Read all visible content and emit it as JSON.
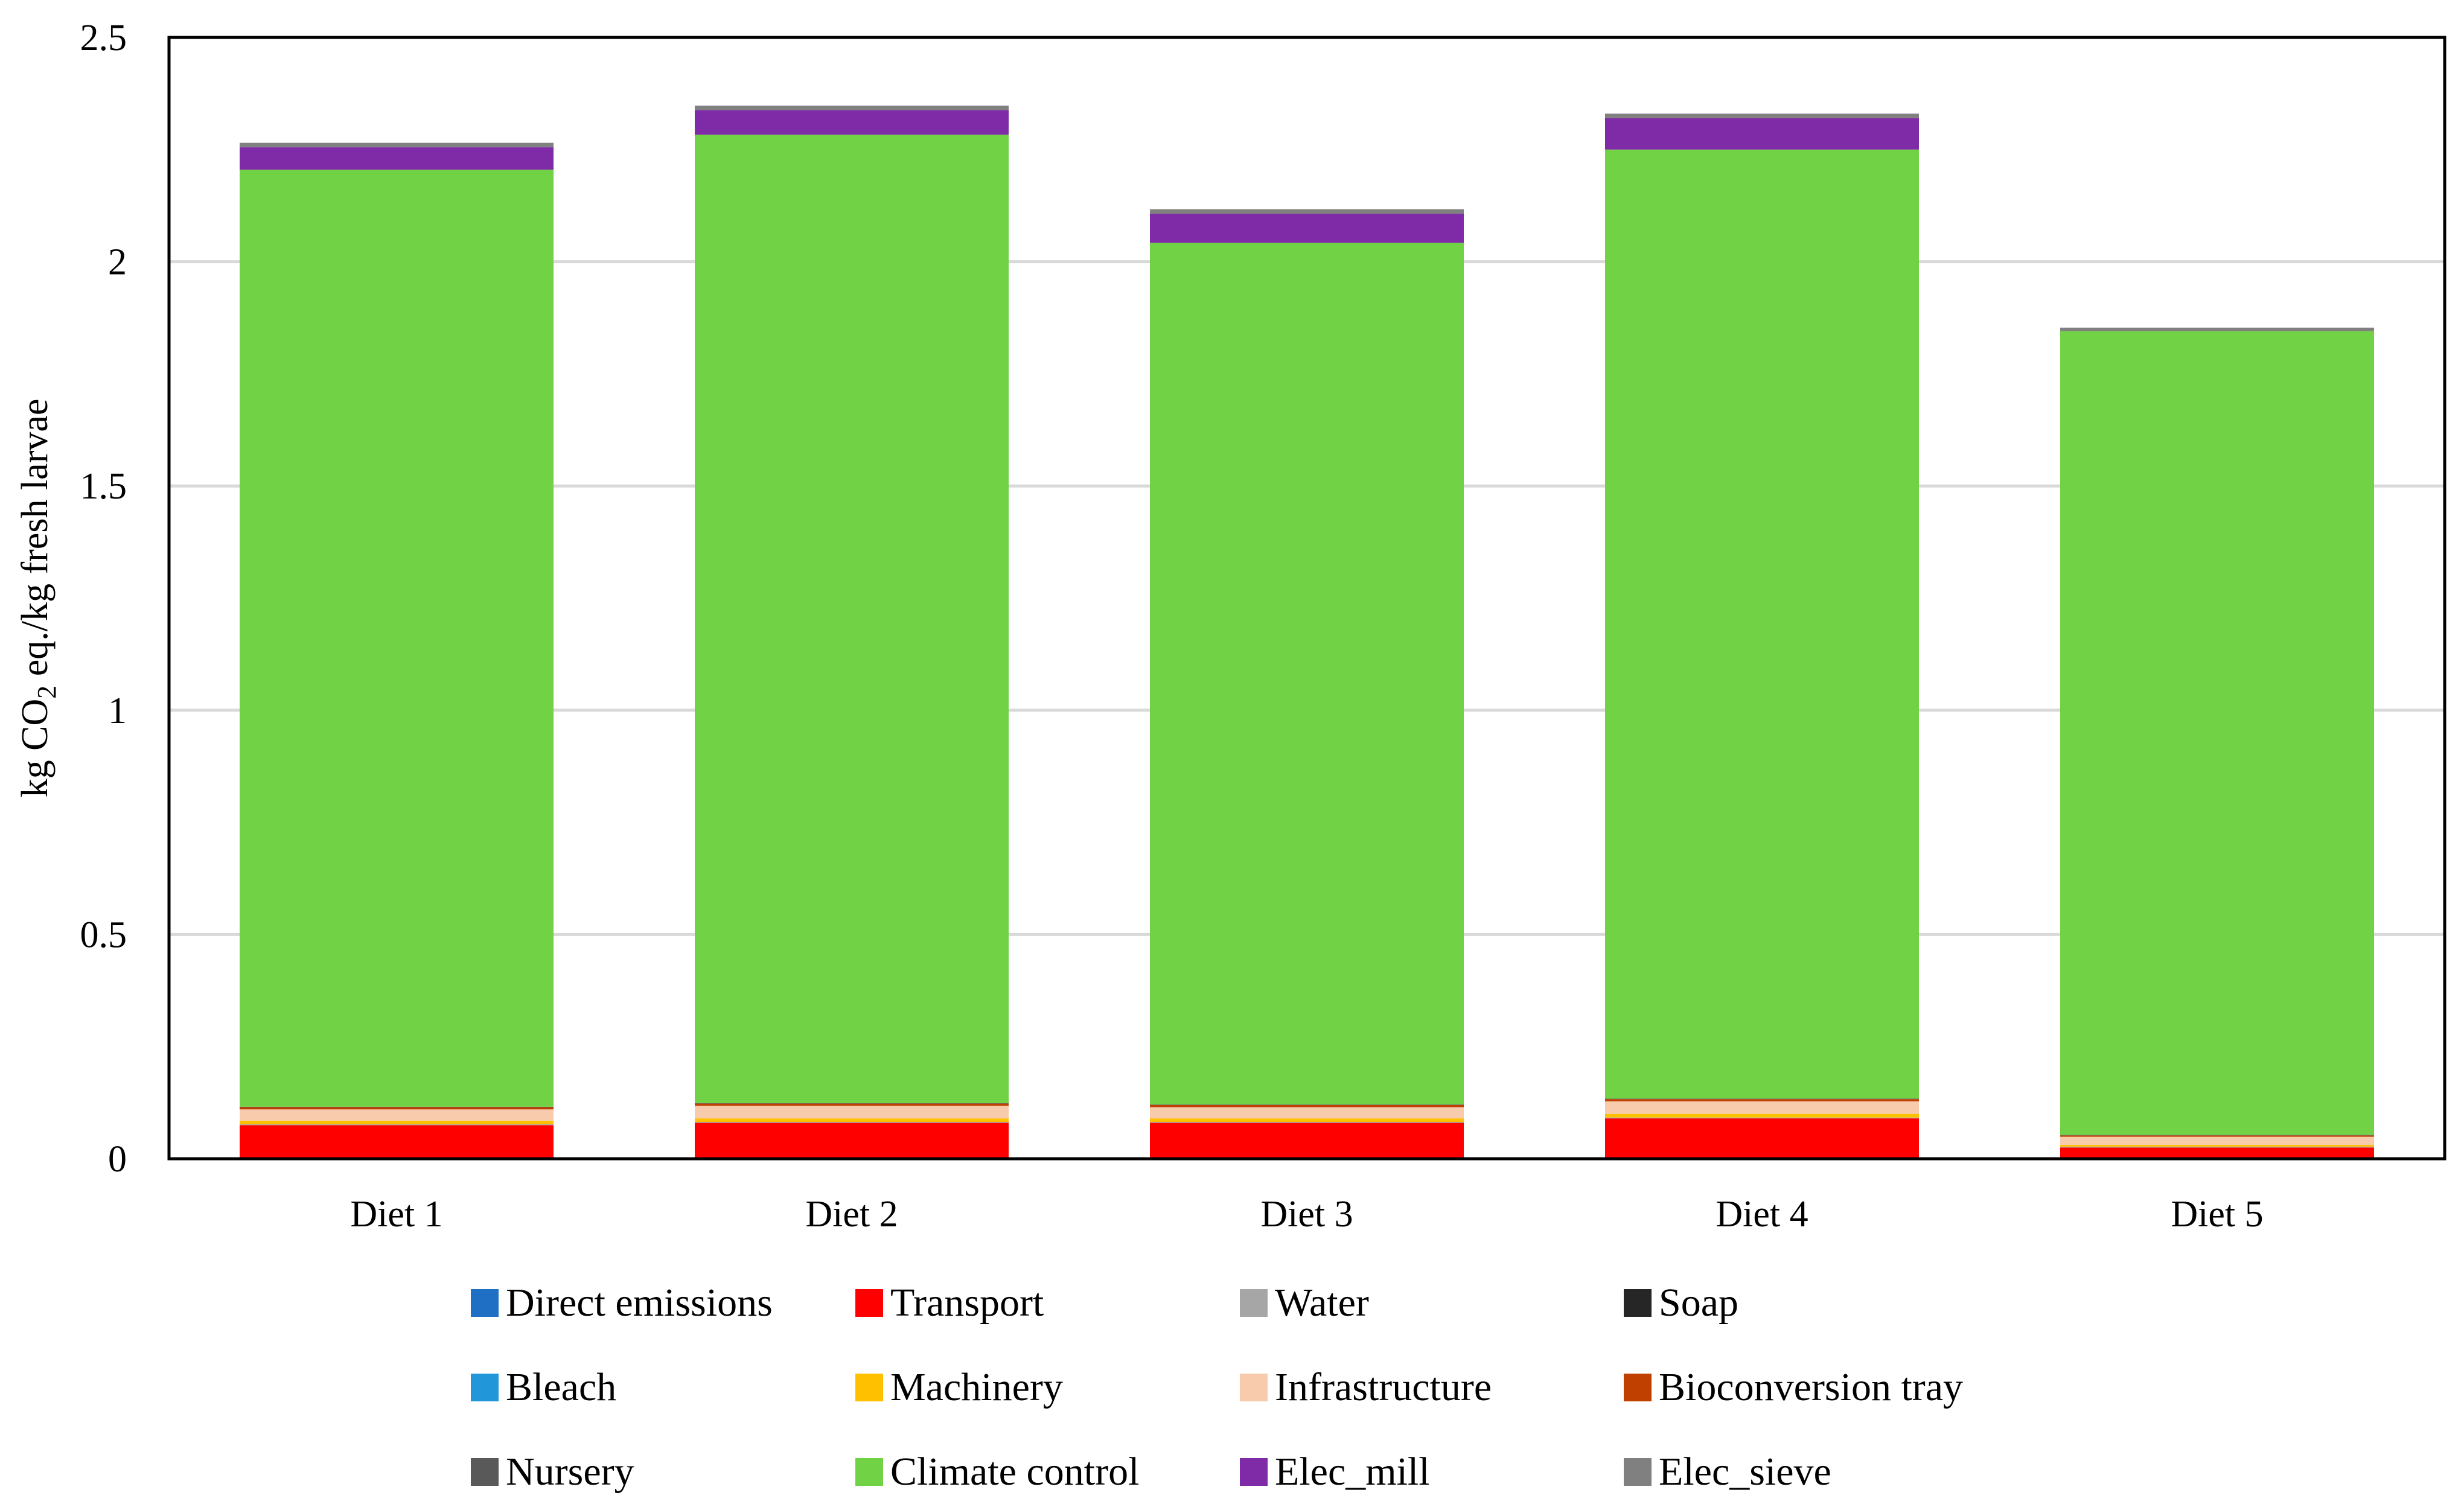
{
  "chart_data": {
    "type": "bar",
    "stacked": true,
    "title": "",
    "xlabel": "",
    "ylabel": {
      "prefix": "kg CO",
      "subscript": "2",
      "suffix": " eq./kg fresh larvae"
    },
    "ylim": [
      0,
      2.5
    ],
    "yticks": [
      0,
      0.5,
      1,
      1.5,
      2,
      2.5
    ],
    "ytick_labels": [
      "0",
      "0.5",
      "1",
      "1.5",
      "2",
      "2.5"
    ],
    "grid": true,
    "legend_position": "bottom",
    "categories": [
      "Diet 1",
      "Diet 2",
      "Diet 3",
      "Diet 4",
      "Diet 5"
    ],
    "series": [
      {
        "name": "Direct emissions",
        "color": "#1f6fc5",
        "values": [
          0,
          0,
          0,
          0,
          0
        ]
      },
      {
        "name": "Transport",
        "color": "#ff0000",
        "values": [
          0.075,
          0.08,
          0.08,
          0.09,
          0.025
        ]
      },
      {
        "name": "Water",
        "color": "#a6a6a6",
        "values": [
          0.002,
          0.002,
          0.002,
          0.002,
          0.002
        ]
      },
      {
        "name": "Soap",
        "color": "#262626",
        "values": [
          0,
          0,
          0,
          0,
          0
        ]
      },
      {
        "name": "Bleach",
        "color": "#2196d9",
        "values": [
          0,
          0,
          0,
          0,
          0
        ]
      },
      {
        "name": "Machinery",
        "color": "#ffc000",
        "values": [
          0.008,
          0.008,
          0.008,
          0.008,
          0.004
        ]
      },
      {
        "name": "Infrastructure",
        "color": "#f8cbad",
        "values": [
          0.025,
          0.028,
          0.025,
          0.028,
          0.018
        ]
      },
      {
        "name": "Bioconversion tray",
        "color": "#c04000",
        "values": [
          0.005,
          0.005,
          0.005,
          0.005,
          0.003
        ]
      },
      {
        "name": "Nursery",
        "color": "#595959",
        "values": [
          0.001,
          0.001,
          0.001,
          0.001,
          0.001
        ]
      },
      {
        "name": "Climate control",
        "color": "#70d244",
        "values": [
          2.089,
          2.159,
          1.921,
          2.116,
          1.792
        ]
      },
      {
        "name": "Elec_mill",
        "color": "#7f2aa6",
        "values": [
          0.05,
          0.055,
          0.065,
          0.07,
          0
        ]
      },
      {
        "name": "Elec_sieve",
        "color": "#808080",
        "values": [
          0.01,
          0.01,
          0.01,
          0.01,
          0.008
        ]
      }
    ]
  }
}
